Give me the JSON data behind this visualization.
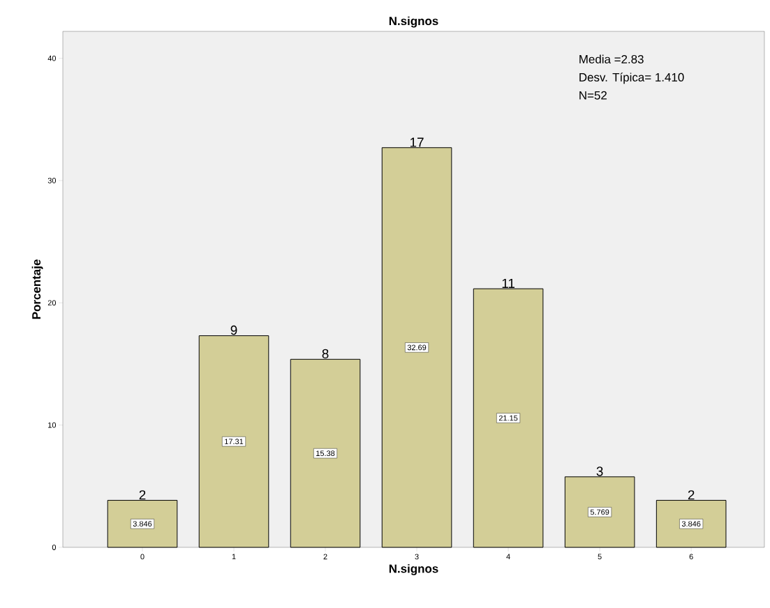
{
  "chart_data": {
    "type": "bar",
    "title": "N.signos",
    "xlabel": "N.signos",
    "ylabel": "Porcentaje",
    "categories": [
      "0",
      "1",
      "2",
      "3",
      "4",
      "5",
      "6"
    ],
    "values": [
      3.846,
      17.31,
      15.38,
      32.69,
      21.15,
      5.769,
      3.846
    ],
    "color": "#d3ce97",
    "data_labels": true,
    "ylim": [
      0,
      42.2
    ],
    "yticks": [
      0,
      10,
      20,
      30,
      40
    ],
    "grid": false,
    "annotations": [
      {
        "text": "2",
        "x": "0",
        "y": 3.846
      },
      {
        "text": "9",
        "x": "1",
        "y": 17.31
      },
      {
        "text": "8",
        "x": "2",
        "y": 15.38
      },
      {
        "text": "17",
        "x": "3",
        "y": 32.69
      },
      {
        "text": "11",
        "x": "4",
        "y": 21.15
      },
      {
        "text": "3",
        "x": "5",
        "y": 5.769
      },
      {
        "text": "2",
        "x": "6",
        "y": 3.846
      },
      "Media =2.83",
      "Desv. Típica= 1.410",
      "N=52"
    ]
  }
}
